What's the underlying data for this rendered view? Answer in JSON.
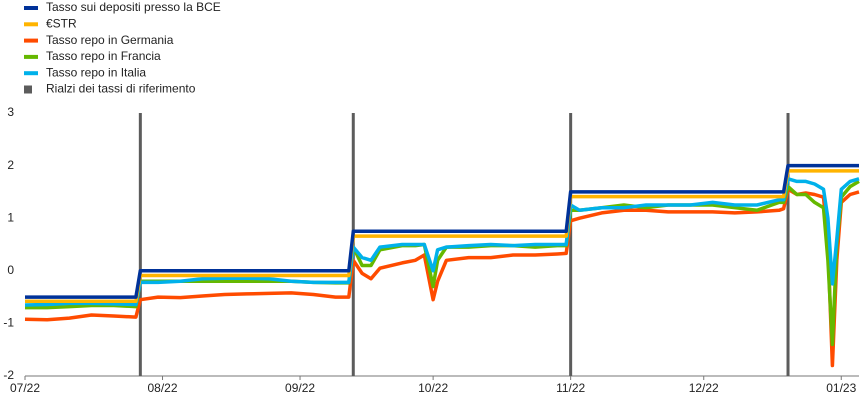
{
  "chart_data": {
    "type": "line",
    "x": [
      0,
      5,
      10,
      15,
      20,
      25,
      26,
      30,
      35,
      40,
      45,
      50,
      55,
      60,
      65,
      70,
      73,
      74,
      76,
      78,
      80,
      85,
      88,
      90,
      92,
      93,
      95,
      100,
      105,
      110,
      115,
      120,
      122,
      123,
      125,
      130,
      135,
      140,
      145,
      150,
      155,
      160,
      165,
      170,
      171,
      172,
      174,
      176,
      178,
      180,
      181,
      182,
      183,
      184,
      186,
      188
    ],
    "xlim": [
      0,
      188
    ],
    "xticks": [
      {
        "value": 0,
        "label": "07/22"
      },
      {
        "value": 31,
        "label": "08/22"
      },
      {
        "value": 62,
        "label": "09/22"
      },
      {
        "value": 92,
        "label": "10/22"
      },
      {
        "value": 123,
        "label": "11/22"
      },
      {
        "value": 153,
        "label": "12/22"
      },
      {
        "value": 184,
        "label": "01/23"
      }
    ],
    "ylim": [
      -2,
      3
    ],
    "yticks": [
      3,
      2,
      1,
      0,
      -1,
      -2
    ],
    "series": [
      {
        "name": "Tasso sui depositi presso la BCE",
        "color": "#003299",
        "values": [
          -0.5,
          -0.5,
          -0.5,
          -0.5,
          -0.5,
          -0.5,
          0,
          0,
          0,
          0,
          0,
          0,
          0,
          0,
          0,
          0,
          0,
          0.75,
          0.75,
          0.75,
          0.75,
          0.75,
          0.75,
          0.75,
          0.75,
          0.75,
          0.75,
          0.75,
          0.75,
          0.75,
          0.75,
          0.75,
          0.75,
          1.5,
          1.5,
          1.5,
          1.5,
          1.5,
          1.5,
          1.5,
          1.5,
          1.5,
          1.5,
          1.5,
          1.5,
          2,
          2,
          2,
          2,
          2,
          2,
          2,
          2,
          2,
          2,
          2
        ]
      },
      {
        "name": "€STR",
        "color": "#ffb400",
        "values": [
          -0.58,
          -0.58,
          -0.58,
          -0.58,
          -0.58,
          -0.58,
          -0.09,
          -0.09,
          -0.09,
          -0.09,
          -0.09,
          -0.09,
          -0.09,
          -0.09,
          -0.09,
          -0.09,
          -0.09,
          0.66,
          0.66,
          0.66,
          0.66,
          0.66,
          0.66,
          0.66,
          0.66,
          0.66,
          0.66,
          0.66,
          0.66,
          0.66,
          0.66,
          0.66,
          0.66,
          1.41,
          1.41,
          1.41,
          1.41,
          1.41,
          1.41,
          1.41,
          1.41,
          1.41,
          1.41,
          1.41,
          1.41,
          1.9,
          1.9,
          1.9,
          1.9,
          1.9,
          1.9,
          1.9,
          1.9,
          1.9,
          1.9,
          1.9
        ]
      },
      {
        "name": "Tasso repo in Germania",
        "color": "#ff4b00",
        "values": [
          -0.92,
          -0.93,
          -0.9,
          -0.84,
          -0.86,
          -0.88,
          -0.55,
          -0.5,
          -0.51,
          -0.48,
          -0.45,
          -0.44,
          -0.43,
          -0.42,
          -0.45,
          -0.5,
          -0.5,
          0.2,
          -0.05,
          -0.15,
          0.05,
          0.15,
          0.2,
          0.3,
          -0.55,
          -0.2,
          0.2,
          0.25,
          0.25,
          0.3,
          0.3,
          0.32,
          0.33,
          0.95,
          1,
          1.1,
          1.15,
          1.15,
          1.12,
          1.12,
          1.12,
          1.1,
          1.12,
          1.15,
          1.18,
          1.55,
          1.45,
          1.48,
          1.45,
          1.4,
          0.5,
          -1.8,
          0.2,
          1.3,
          1.45,
          1.5
        ]
      },
      {
        "name": "Tasso repo in Francia",
        "color": "#65b800",
        "values": [
          -0.7,
          -0.7,
          -0.68,
          -0.66,
          -0.66,
          -0.68,
          -0.2,
          -0.2,
          -0.2,
          -0.2,
          -0.2,
          -0.2,
          -0.2,
          -0.2,
          -0.22,
          -0.23,
          -0.23,
          0.45,
          0.1,
          0.1,
          0.4,
          0.48,
          0.48,
          0.5,
          -0.3,
          0.2,
          0.45,
          0.45,
          0.48,
          0.48,
          0.45,
          0.48,
          0.48,
          1.15,
          1.15,
          1.2,
          1.25,
          1.2,
          1.25,
          1.25,
          1.25,
          1.2,
          1.15,
          1.3,
          1.3,
          1.6,
          1.45,
          1.45,
          1.3,
          1.2,
          0.2,
          -1.4,
          0.5,
          1.4,
          1.6,
          1.7
        ]
      },
      {
        "name": "Tasso repo in Italia",
        "color": "#00b1ea",
        "values": [
          -0.65,
          -0.64,
          -0.62,
          -0.62,
          -0.63,
          -0.64,
          -0.22,
          -0.22,
          -0.2,
          -0.15,
          -0.14,
          -0.14,
          -0.15,
          -0.2,
          -0.22,
          -0.22,
          -0.22,
          0.45,
          0.25,
          0.2,
          0.45,
          0.5,
          0.5,
          0.5,
          0,
          0.4,
          0.45,
          0.48,
          0.5,
          0.48,
          0.5,
          0.5,
          0.5,
          1.25,
          1.15,
          1.2,
          1.2,
          1.25,
          1.25,
          1.25,
          1.3,
          1.25,
          1.25,
          1.35,
          1.35,
          1.75,
          1.7,
          1.7,
          1.65,
          1.55,
          1,
          -0.25,
          0.6,
          1.55,
          1.7,
          1.75
        ]
      }
    ],
    "hikes": {
      "name": "Rialzi dei tassi di riferimento",
      "color": "#5c5c5c",
      "x": [
        26,
        74,
        123,
        172
      ]
    }
  }
}
